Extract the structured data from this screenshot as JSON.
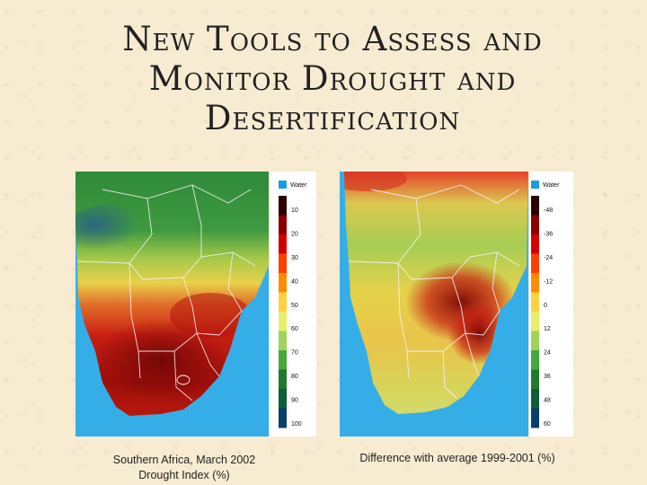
{
  "slide": {
    "title_lines": [
      "New Tools to Assess and",
      "Monitor Drought and",
      "Desertification"
    ]
  },
  "left_map": {
    "legend_water": "Water",
    "legend_ticks": [
      "10",
      "20",
      "30",
      "40",
      "50",
      "60",
      "70",
      "80",
      "90",
      "100"
    ],
    "legend_colors": [
      "#2a0000",
      "#8b0000",
      "#d40000",
      "#ff4000",
      "#ff8c00",
      "#ffd23f",
      "#e8ef6a",
      "#9fd35a",
      "#45a83a",
      "#1f7a2d",
      "#0d5c3a",
      "#0a3f6b"
    ],
    "caption_line1": "Southern Africa, March 2002",
    "caption_line2": "Drought Index (%)"
  },
  "right_map": {
    "legend_water": "Water",
    "legend_ticks": [
      "-48",
      "-36",
      "-24",
      "-12",
      "0",
      "12",
      "24",
      "36",
      "48",
      "60"
    ],
    "legend_colors": [
      "#2a0000",
      "#8b0000",
      "#d40000",
      "#ff4000",
      "#ff8c00",
      "#ffd23f",
      "#e8ef6a",
      "#9fd35a",
      "#45a83a",
      "#1f7a2d",
      "#0d5c3a",
      "#0a3f6b"
    ],
    "caption": "Difference with  average 1999-2001 (%)"
  },
  "colors": {
    "ocean": "#35aee8",
    "water_swatch": "#1e9be0"
  }
}
